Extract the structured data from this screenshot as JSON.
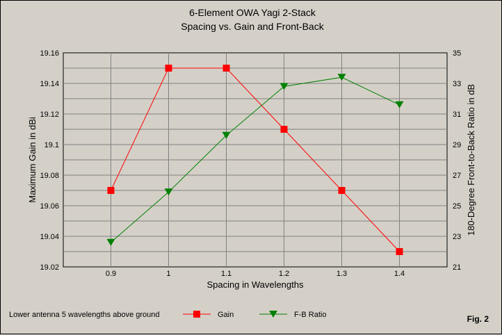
{
  "chart_data": {
    "type": "line",
    "title": "6-Element OWA Yagi 2-Stack",
    "subtitle": "Spacing vs. Gain and Front-Back",
    "xlabel": "Spacing in Wavelengths",
    "ylabel_left": "Maximum Gain in dBi",
    "ylabel_right": "180-Degree Front-to-Back Ratio in dB",
    "categories": [
      "0.9",
      "1",
      "1.1",
      "1.2",
      "1.3",
      "1.4"
    ],
    "ylim_left": [
      19.02,
      19.16
    ],
    "ylim_right": [
      21,
      35
    ],
    "yticks_left": [
      "19.16",
      "19.14",
      "19.12",
      "19.1",
      "19.08",
      "19.06",
      "19.04",
      "19.02"
    ],
    "yticks_right": [
      "35",
      "33",
      "31",
      "29",
      "27",
      "25",
      "23",
      "21"
    ],
    "grid": true,
    "series": [
      {
        "name": "Gain",
        "axis": "left",
        "color": "#ff0000",
        "marker": "square",
        "values": [
          19.07,
          19.15,
          19.15,
          19.11,
          19.07,
          19.03
        ]
      },
      {
        "name": "F-B Ratio",
        "axis": "right",
        "color": "#008000",
        "marker": "triangle-down",
        "values": [
          22.6,
          25.9,
          29.6,
          32.8,
          33.4,
          31.6
        ]
      }
    ],
    "note": "Lower antenna 5 wavelengths above ground",
    "figure_label": "Fig. 2",
    "legend_position": "bottom"
  }
}
